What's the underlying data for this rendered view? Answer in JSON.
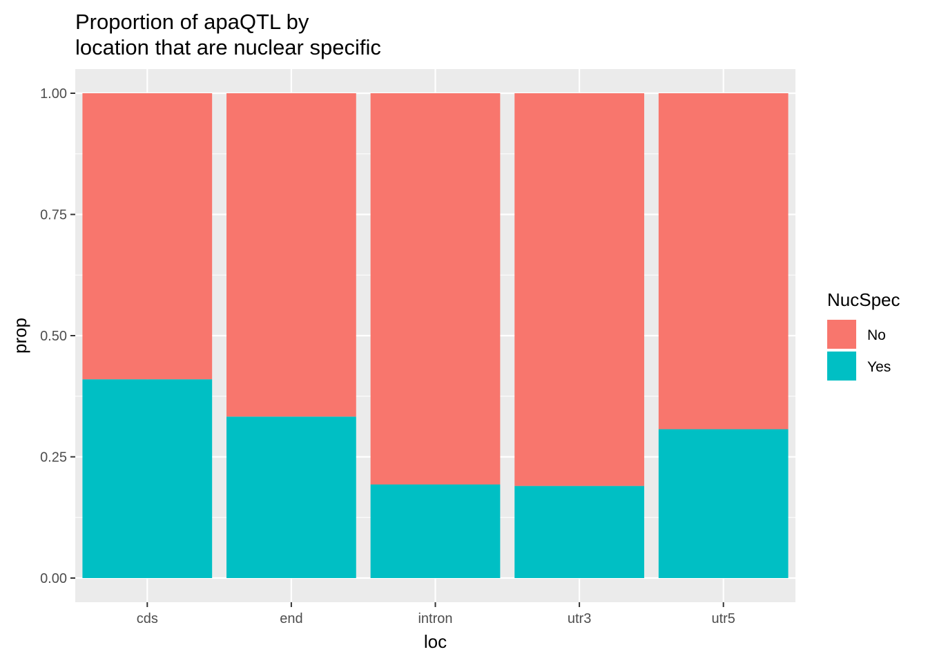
{
  "chart_data": {
    "type": "bar",
    "stacked": true,
    "title": [
      "Proportion of apaQTL by",
      "location that are nuclear specific"
    ],
    "xlabel": "loc",
    "ylabel": "prop",
    "categories": [
      "cds",
      "end",
      "intron",
      "utr3",
      "utr5"
    ],
    "ylim": [
      0,
      1
    ],
    "yticks": [
      0,
      0.25,
      0.5,
      0.75,
      1
    ],
    "ytick_labels": [
      "0.00",
      "0.25",
      "0.50",
      "0.75",
      "1.00"
    ],
    "grid": true,
    "legend": {
      "title": "NucSpec",
      "placement": "right"
    },
    "series": [
      {
        "name": "Yes",
        "color": "#00BFC4",
        "values": [
          0.41,
          0.333,
          0.193,
          0.19,
          0.307
        ]
      },
      {
        "name": "No",
        "color": "#F8766D",
        "values": [
          0.59,
          0.667,
          0.807,
          0.81,
          0.693
        ]
      }
    ],
    "legend_order": [
      "No",
      "Yes"
    ]
  }
}
